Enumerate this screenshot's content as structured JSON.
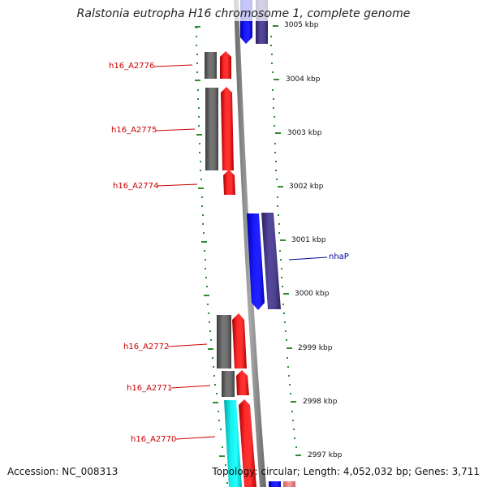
{
  "title": "Ralstonia eutropha H16 chromosome 1, complete genome",
  "footer": {
    "accession": "Accession: NC_008313",
    "summary": "Topology: circular; Length: 4,052,032 bp; Genes: 3,711"
  },
  "scale_labels": [
    "3005 kbp",
    "3004 kbp",
    "3003 kbp",
    "3002 kbp",
    "3001 kbp",
    "3000 kbp",
    "2999 kbp",
    "2998 kbp",
    "2997 kbp"
  ],
  "gene_labels": [
    {
      "text": "h16_A2776",
      "color": "#cc0000"
    },
    {
      "text": "h16_A2775",
      "color": "#cc0000"
    },
    {
      "text": "h16_A2774",
      "color": "#cc0000"
    },
    {
      "text": "nhaP",
      "color": "#000099"
    },
    {
      "text": "h16_A2772",
      "color": "#cc0000"
    },
    {
      "text": "h16_A2771",
      "color": "#cc0000"
    },
    {
      "text": "h16_A2770",
      "color": "#cc0000"
    }
  ],
  "colors": {
    "scale_ticks": "#2e8b2e",
    "backbone": "#8c8c8c",
    "forward_cds": "#ff1a1a",
    "forward_gene": "#696969",
    "forward_cds_special": "#00e5e5",
    "reverse_cds": "#1a1aff",
    "reverse_gene": "#4a3f8f"
  }
}
